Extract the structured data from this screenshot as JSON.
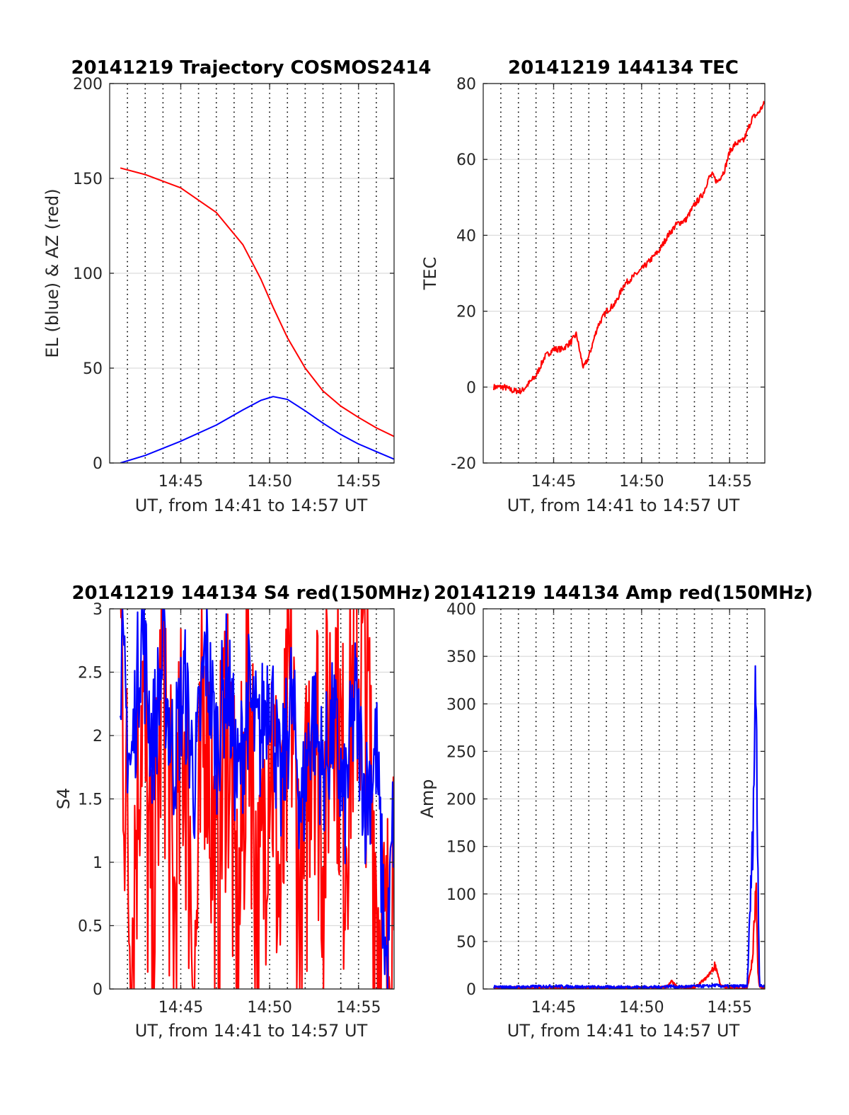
{
  "colors": {
    "el": "#0000ff",
    "az": "#ff0000",
    "tec": "#ff0000",
    "s4_red": "#ff0000",
    "s4_blue": "#0000ff",
    "amp_red": "#ff0000",
    "amp_blue": "#0000ff",
    "grid": "#dcdcdc",
    "vline": "#000000"
  },
  "chart_data": [
    {
      "id": "trajectory",
      "type": "line",
      "title": "20141219 Trajectory COSMOS2414",
      "xlabel": "UT, from 14:41 to 14:57 UT",
      "ylabel": "EL (blue) & AZ (red)",
      "xlim": [
        "14:41",
        "14:57"
      ],
      "ylim": [
        0,
        200
      ],
      "x_ticks": [
        "14:45",
        "14:50",
        "14:55"
      ],
      "y_ticks": [
        0,
        50,
        100,
        150,
        200
      ],
      "grid": true,
      "x_unit": "minutes after 14:41",
      "x": [
        0.6,
        2,
        4,
        6,
        7.5,
        8.5,
        9.2,
        10,
        11,
        12,
        13,
        14,
        15,
        16
      ],
      "series": [
        {
          "color": "#0000ff",
          "values": [
            0,
            4,
            11.5,
            20,
            28,
            33,
            35,
            33.5,
            27.5,
            21,
            15,
            10,
            6,
            2
          ]
        },
        {
          "color": "#ff0000",
          "values": [
            155.5,
            152,
            145,
            132,
            115,
            97,
            82,
            66,
            50,
            38,
            30,
            24,
            18.5,
            14
          ]
        }
      ]
    },
    {
      "id": "tec",
      "type": "line",
      "title": "20141219 144134 TEC",
      "xlabel": "UT, from 14:41 to 14:57 UT",
      "ylabel": "TEC",
      "xlim": [
        "14:41",
        "14:57"
      ],
      "ylim": [
        -20,
        80
      ],
      "x_ticks": [
        "14:45",
        "14:50",
        "14:55"
      ],
      "y_ticks": [
        -20,
        0,
        20,
        40,
        60,
        80
      ],
      "grid": true,
      "x_unit": "minutes after 14:41",
      "x": [
        0.6,
        1.2,
        1.7,
        2.2,
        3,
        3.5,
        4,
        4.5,
        5,
        5.3,
        5.5,
        5.7,
        6,
        6.5,
        7,
        7.5,
        8,
        8.5,
        9,
        10,
        10.5,
        11,
        11.5,
        12,
        12.5,
        12.8,
        13,
        13.3,
        13.7,
        14,
        14.3,
        14.8,
        15.3,
        15.6,
        16
      ],
      "series": [
        {
          "color": "#ff0000",
          "values": [
            0,
            0,
            -1,
            -1,
            3,
            8,
            10,
            10,
            12,
            14,
            9,
            5,
            8,
            16,
            20,
            22,
            27,
            29,
            31,
            36,
            40,
            43,
            44,
            48,
            51,
            55,
            56,
            54,
            57,
            62,
            64,
            65,
            71,
            72,
            75
          ]
        }
      ]
    },
    {
      "id": "s4",
      "type": "line",
      "title": "20141219 144134 S4 red(150MHz)",
      "xlabel": "UT, from 14:41 to 14:57 UT",
      "ylabel": "S4",
      "xlim": [
        "14:41",
        "14:57"
      ],
      "ylim": [
        0,
        3
      ],
      "x_ticks": [
        "14:45",
        "14:50",
        "14:55"
      ],
      "y_ticks": [
        0,
        0.5,
        1,
        1.5,
        2,
        2.5,
        3
      ],
      "grid": true,
      "x_unit": "minutes after 14:41",
      "x": [
        0.6,
        1.2,
        1.8,
        2.4,
        3,
        3.6,
        4.2,
        4.8,
        5.4,
        6,
        6.6,
        7.2,
        7.8,
        8.4,
        9,
        9.6,
        10.2,
        10.8,
        11.4,
        12,
        12.6,
        13.2,
        13.8,
        14.4,
        15,
        15.3,
        15.6,
        16
      ],
      "series": [
        {
          "color": "#ff0000",
          "values": [
            2.9,
            0.3,
            2.5,
            0.2,
            2.8,
            0.4,
            2.2,
            0.1,
            2.6,
            0.5,
            2.4,
            0.2,
            2.7,
            0.3,
            2.3,
            0.6,
            2.5,
            0.2,
            2.6,
            1.2,
            2.8,
            1.3,
            2.7,
            2.4,
            0.9,
            0.2,
            0.1,
            1.3
          ]
        },
        {
          "color": "#0000ff",
          "values": [
            2.7,
            1.7,
            2.9,
            1.9,
            2.6,
            1.8,
            2.4,
            1.6,
            2.7,
            1.9,
            2.5,
            1.6,
            2.3,
            1.9,
            2.5,
            1.5,
            2.3,
            1.4,
            2.2,
            1.7,
            2.1,
            1.4,
            2.3,
            1.5,
            1.9,
            0.9,
            0.1,
            1.5
          ]
        }
      ]
    },
    {
      "id": "amp",
      "type": "line",
      "title": "20141219 144134 Amp red(150MHz)",
      "xlabel": "UT, from 14:41 to 14:57 UT",
      "ylabel": "Amp",
      "xlim": [
        "14:41",
        "14:57"
      ],
      "ylim": [
        0,
        400
      ],
      "x_ticks": [
        "14:45",
        "14:50",
        "14:55"
      ],
      "y_ticks": [
        0,
        50,
        100,
        150,
        200,
        250,
        300,
        350,
        400
      ],
      "grid": true,
      "x_unit": "minutes after 14:41",
      "x": [
        0.6,
        2,
        4,
        6,
        8,
        10,
        10.5,
        10.7,
        11,
        12,
        12.7,
        13.2,
        13.5,
        14,
        15,
        15.3,
        15.5,
        15.6,
        15.7,
        15.8,
        16
      ],
      "series": [
        {
          "color": "#ff0000",
          "values": [
            1,
            1,
            1,
            1,
            1,
            1,
            3,
            8,
            2,
            1,
            12,
            25,
            3,
            1,
            1,
            30,
            105,
            20,
            2,
            1,
            1
          ]
        },
        {
          "color": "#0000ff",
          "values": [
            2,
            2,
            3,
            2,
            2,
            2,
            3,
            3,
            2,
            3,
            3,
            4,
            3,
            3,
            3,
            150,
            337,
            140,
            4,
            3,
            3
          ]
        }
      ]
    }
  ]
}
